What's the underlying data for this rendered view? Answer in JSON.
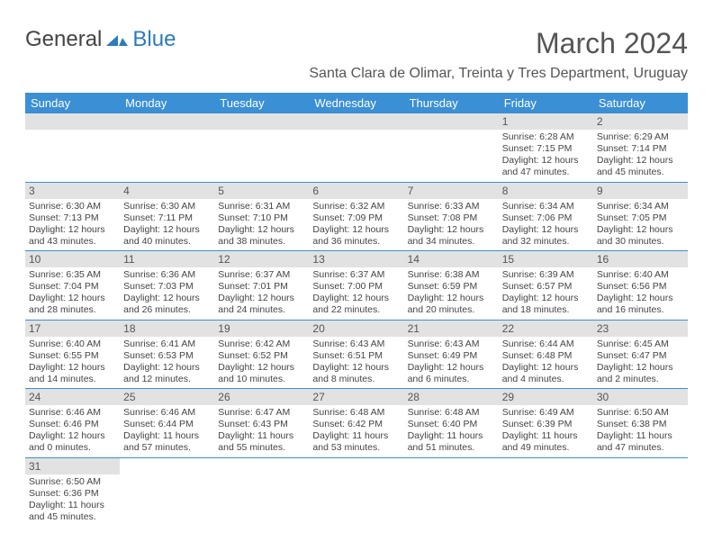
{
  "logo": {
    "general": "General",
    "blue": "Blue"
  },
  "title": "March 2024",
  "location": "Santa Clara de Olimar, Treinta y Tres Department, Uruguay",
  "colors": {
    "header_bg": "#3b8fd4",
    "border": "#3b8fd4",
    "daybar": "#e2e2e2"
  },
  "weekdays": [
    "Sunday",
    "Monday",
    "Tuesday",
    "Wednesday",
    "Thursday",
    "Friday",
    "Saturday"
  ],
  "weeks": [
    [
      null,
      null,
      null,
      null,
      null,
      {
        "n": "1",
        "sr": "Sunrise: 6:28 AM",
        "ss": "Sunset: 7:15 PM",
        "dl1": "Daylight: 12 hours",
        "dl2": "and 47 minutes."
      },
      {
        "n": "2",
        "sr": "Sunrise: 6:29 AM",
        "ss": "Sunset: 7:14 PM",
        "dl1": "Daylight: 12 hours",
        "dl2": "and 45 minutes."
      }
    ],
    [
      {
        "n": "3",
        "sr": "Sunrise: 6:30 AM",
        "ss": "Sunset: 7:13 PM",
        "dl1": "Daylight: 12 hours",
        "dl2": "and 43 minutes."
      },
      {
        "n": "4",
        "sr": "Sunrise: 6:30 AM",
        "ss": "Sunset: 7:11 PM",
        "dl1": "Daylight: 12 hours",
        "dl2": "and 40 minutes."
      },
      {
        "n": "5",
        "sr": "Sunrise: 6:31 AM",
        "ss": "Sunset: 7:10 PM",
        "dl1": "Daylight: 12 hours",
        "dl2": "and 38 minutes."
      },
      {
        "n": "6",
        "sr": "Sunrise: 6:32 AM",
        "ss": "Sunset: 7:09 PM",
        "dl1": "Daylight: 12 hours",
        "dl2": "and 36 minutes."
      },
      {
        "n": "7",
        "sr": "Sunrise: 6:33 AM",
        "ss": "Sunset: 7:08 PM",
        "dl1": "Daylight: 12 hours",
        "dl2": "and 34 minutes."
      },
      {
        "n": "8",
        "sr": "Sunrise: 6:34 AM",
        "ss": "Sunset: 7:06 PM",
        "dl1": "Daylight: 12 hours",
        "dl2": "and 32 minutes."
      },
      {
        "n": "9",
        "sr": "Sunrise: 6:34 AM",
        "ss": "Sunset: 7:05 PM",
        "dl1": "Daylight: 12 hours",
        "dl2": "and 30 minutes."
      }
    ],
    [
      {
        "n": "10",
        "sr": "Sunrise: 6:35 AM",
        "ss": "Sunset: 7:04 PM",
        "dl1": "Daylight: 12 hours",
        "dl2": "and 28 minutes."
      },
      {
        "n": "11",
        "sr": "Sunrise: 6:36 AM",
        "ss": "Sunset: 7:03 PM",
        "dl1": "Daylight: 12 hours",
        "dl2": "and 26 minutes."
      },
      {
        "n": "12",
        "sr": "Sunrise: 6:37 AM",
        "ss": "Sunset: 7:01 PM",
        "dl1": "Daylight: 12 hours",
        "dl2": "and 24 minutes."
      },
      {
        "n": "13",
        "sr": "Sunrise: 6:37 AM",
        "ss": "Sunset: 7:00 PM",
        "dl1": "Daylight: 12 hours",
        "dl2": "and 22 minutes."
      },
      {
        "n": "14",
        "sr": "Sunrise: 6:38 AM",
        "ss": "Sunset: 6:59 PM",
        "dl1": "Daylight: 12 hours",
        "dl2": "and 20 minutes."
      },
      {
        "n": "15",
        "sr": "Sunrise: 6:39 AM",
        "ss": "Sunset: 6:57 PM",
        "dl1": "Daylight: 12 hours",
        "dl2": "and 18 minutes."
      },
      {
        "n": "16",
        "sr": "Sunrise: 6:40 AM",
        "ss": "Sunset: 6:56 PM",
        "dl1": "Daylight: 12 hours",
        "dl2": "and 16 minutes."
      }
    ],
    [
      {
        "n": "17",
        "sr": "Sunrise: 6:40 AM",
        "ss": "Sunset: 6:55 PM",
        "dl1": "Daylight: 12 hours",
        "dl2": "and 14 minutes."
      },
      {
        "n": "18",
        "sr": "Sunrise: 6:41 AM",
        "ss": "Sunset: 6:53 PM",
        "dl1": "Daylight: 12 hours",
        "dl2": "and 12 minutes."
      },
      {
        "n": "19",
        "sr": "Sunrise: 6:42 AM",
        "ss": "Sunset: 6:52 PM",
        "dl1": "Daylight: 12 hours",
        "dl2": "and 10 minutes."
      },
      {
        "n": "20",
        "sr": "Sunrise: 6:43 AM",
        "ss": "Sunset: 6:51 PM",
        "dl1": "Daylight: 12 hours",
        "dl2": "and 8 minutes."
      },
      {
        "n": "21",
        "sr": "Sunrise: 6:43 AM",
        "ss": "Sunset: 6:49 PM",
        "dl1": "Daylight: 12 hours",
        "dl2": "and 6 minutes."
      },
      {
        "n": "22",
        "sr": "Sunrise: 6:44 AM",
        "ss": "Sunset: 6:48 PM",
        "dl1": "Daylight: 12 hours",
        "dl2": "and 4 minutes."
      },
      {
        "n": "23",
        "sr": "Sunrise: 6:45 AM",
        "ss": "Sunset: 6:47 PM",
        "dl1": "Daylight: 12 hours",
        "dl2": "and 2 minutes."
      }
    ],
    [
      {
        "n": "24",
        "sr": "Sunrise: 6:46 AM",
        "ss": "Sunset: 6:46 PM",
        "dl1": "Daylight: 12 hours",
        "dl2": "and 0 minutes."
      },
      {
        "n": "25",
        "sr": "Sunrise: 6:46 AM",
        "ss": "Sunset: 6:44 PM",
        "dl1": "Daylight: 11 hours",
        "dl2": "and 57 minutes."
      },
      {
        "n": "26",
        "sr": "Sunrise: 6:47 AM",
        "ss": "Sunset: 6:43 PM",
        "dl1": "Daylight: 11 hours",
        "dl2": "and 55 minutes."
      },
      {
        "n": "27",
        "sr": "Sunrise: 6:48 AM",
        "ss": "Sunset: 6:42 PM",
        "dl1": "Daylight: 11 hours",
        "dl2": "and 53 minutes."
      },
      {
        "n": "28",
        "sr": "Sunrise: 6:48 AM",
        "ss": "Sunset: 6:40 PM",
        "dl1": "Daylight: 11 hours",
        "dl2": "and 51 minutes."
      },
      {
        "n": "29",
        "sr": "Sunrise: 6:49 AM",
        "ss": "Sunset: 6:39 PM",
        "dl1": "Daylight: 11 hours",
        "dl2": "and 49 minutes."
      },
      {
        "n": "30",
        "sr": "Sunrise: 6:50 AM",
        "ss": "Sunset: 6:38 PM",
        "dl1": "Daylight: 11 hours",
        "dl2": "and 47 minutes."
      }
    ],
    [
      {
        "n": "31",
        "sr": "Sunrise: 6:50 AM",
        "ss": "Sunset: 6:36 PM",
        "dl1": "Daylight: 11 hours",
        "dl2": "and 45 minutes."
      },
      null,
      null,
      null,
      null,
      null,
      null
    ]
  ]
}
